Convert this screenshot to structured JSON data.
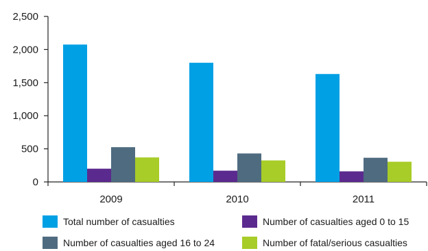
{
  "chart_data": {
    "type": "bar",
    "categories": [
      "2009",
      "2010",
      "2011"
    ],
    "series": [
      {
        "name": "Total number of casualties",
        "color": "#00a0e4",
        "values": [
          2075,
          1800,
          1630
        ]
      },
      {
        "name": "Number of casualties aged 0 to 15",
        "color": "#5b2a8e",
        "values": [
          200,
          170,
          160
        ]
      },
      {
        "name": "Number of casualties aged 16 to 24",
        "color": "#4f6b80",
        "values": [
          525,
          430,
          365
        ]
      },
      {
        "name": "Number of fatal/serious casualties",
        "color": "#a8cc28",
        "values": [
          370,
          325,
          305
        ]
      }
    ],
    "yticks": [
      "0",
      "500",
      "1,000",
      "1,500",
      "2,000",
      "2,500"
    ],
    "ylim": [
      0,
      2500
    ],
    "grid": false,
    "legend_position": "bottom"
  }
}
